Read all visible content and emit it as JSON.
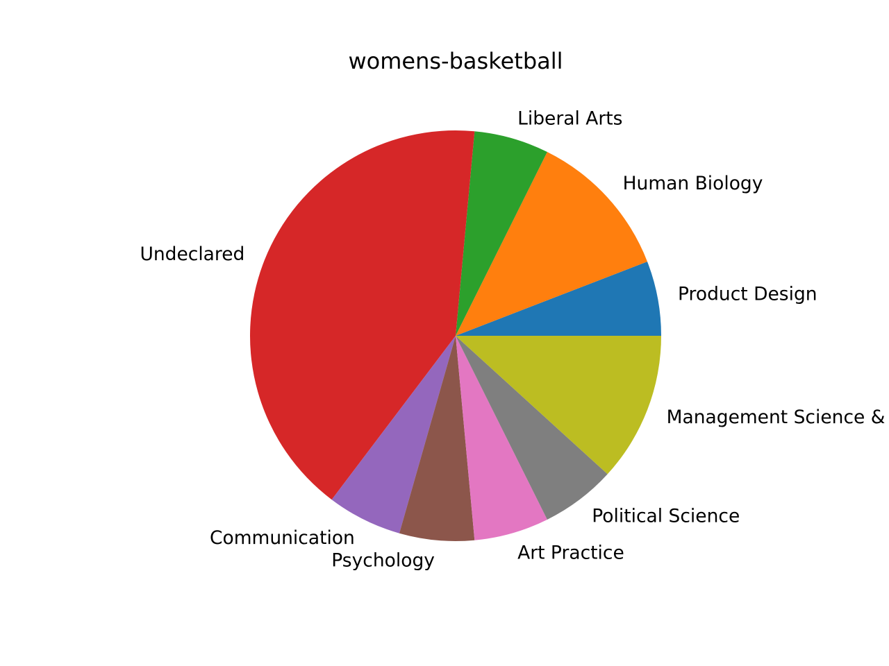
{
  "chart_data": {
    "type": "pie",
    "title": "womens-basketball",
    "categories": [
      "Product Design",
      "Human Biology",
      "Liberal Arts",
      "Undeclared",
      "Communication",
      "Psychology",
      "Art Practice",
      "Political Science",
      "Management Science & Engineering"
    ],
    "values": [
      1,
      2,
      1,
      7,
      1,
      1,
      1,
      1,
      2
    ],
    "colors": [
      "#1f77b4",
      "#ff7f0e",
      "#2ca02c",
      "#d62728",
      "#9467bd",
      "#8c564b",
      "#e377c2",
      "#7f7f7f",
      "#bcbd22"
    ],
    "start_angle_deg": 0,
    "direction": "counterclockwise",
    "legend": "none"
  }
}
